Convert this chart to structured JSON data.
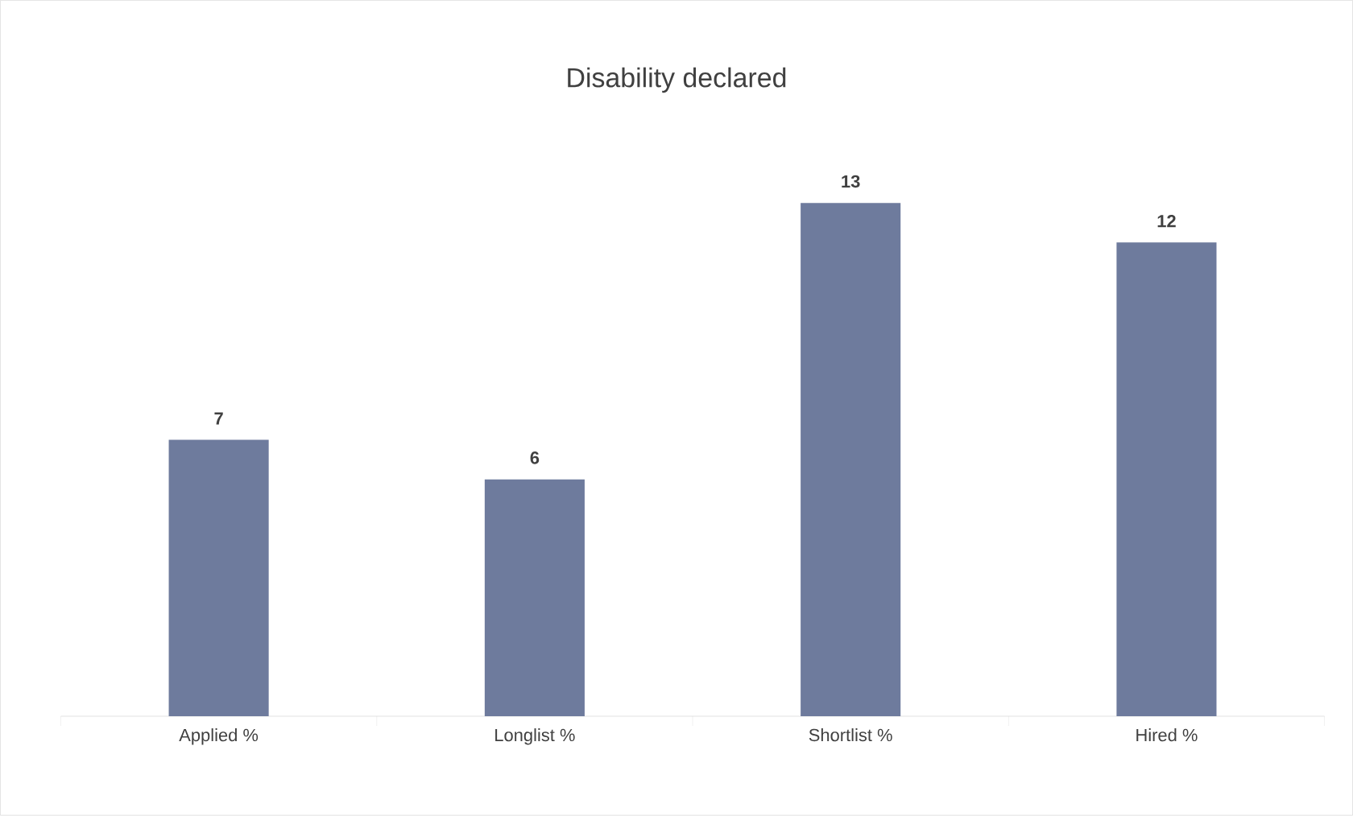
{
  "chart_data": {
    "type": "bar",
    "title": "Disability declared",
    "categories": [
      "Applied %",
      "Longlist %",
      "Shortlist %",
      "Hired %"
    ],
    "values": [
      7,
      6,
      13,
      12
    ],
    "color": "#6e7b9d",
    "data_labels": true
  }
}
